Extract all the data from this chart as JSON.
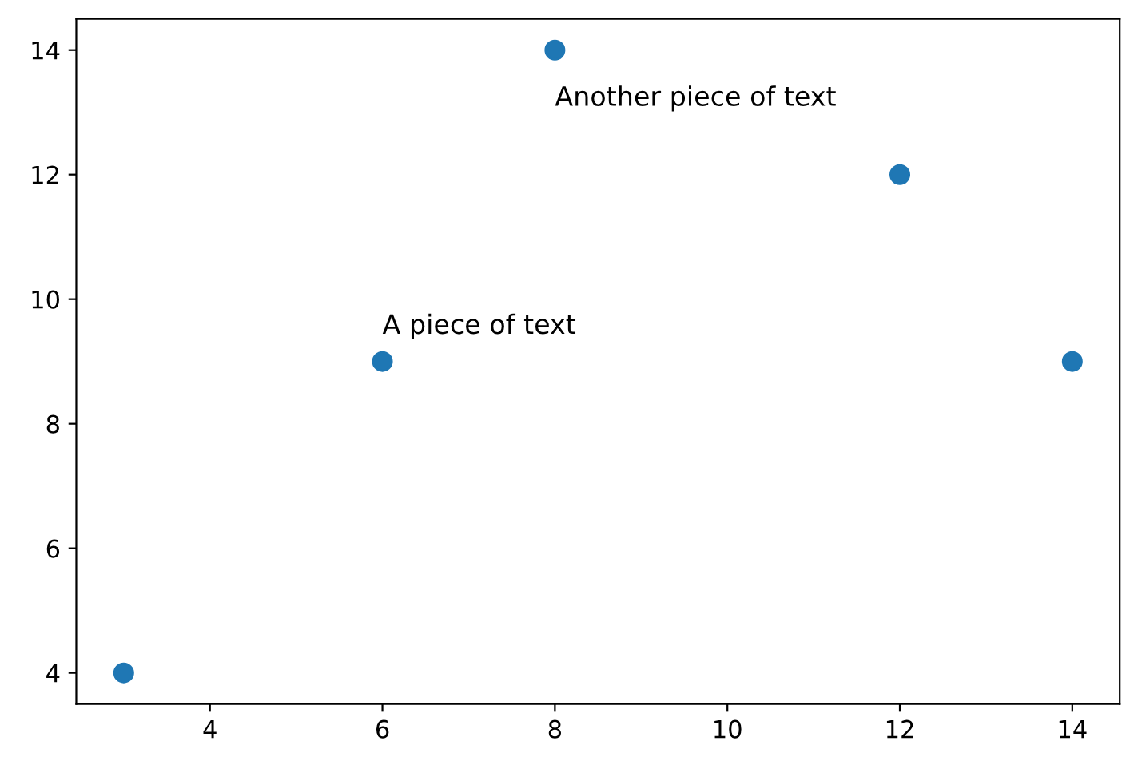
{
  "chart_data": {
    "type": "scatter",
    "x": [
      3,
      6,
      8,
      12,
      14
    ],
    "series": [
      {
        "color": "#1f77b4",
        "values": [
          4,
          9,
          14,
          12,
          9
        ]
      }
    ],
    "marker": "circle",
    "xlim": [
      2.45,
      14.55
    ],
    "ylim": [
      3.5,
      14.5
    ],
    "xticks": [
      4,
      6,
      8,
      10,
      12,
      14
    ],
    "yticks": [
      4,
      6,
      8,
      10,
      12,
      14
    ],
    "grid": false,
    "legend": false,
    "annotations": [
      {
        "text": "A piece of text",
        "x": 6,
        "y": 9
      },
      {
        "text": "Another piece of text",
        "x": 8,
        "y": 14
      }
    ]
  }
}
